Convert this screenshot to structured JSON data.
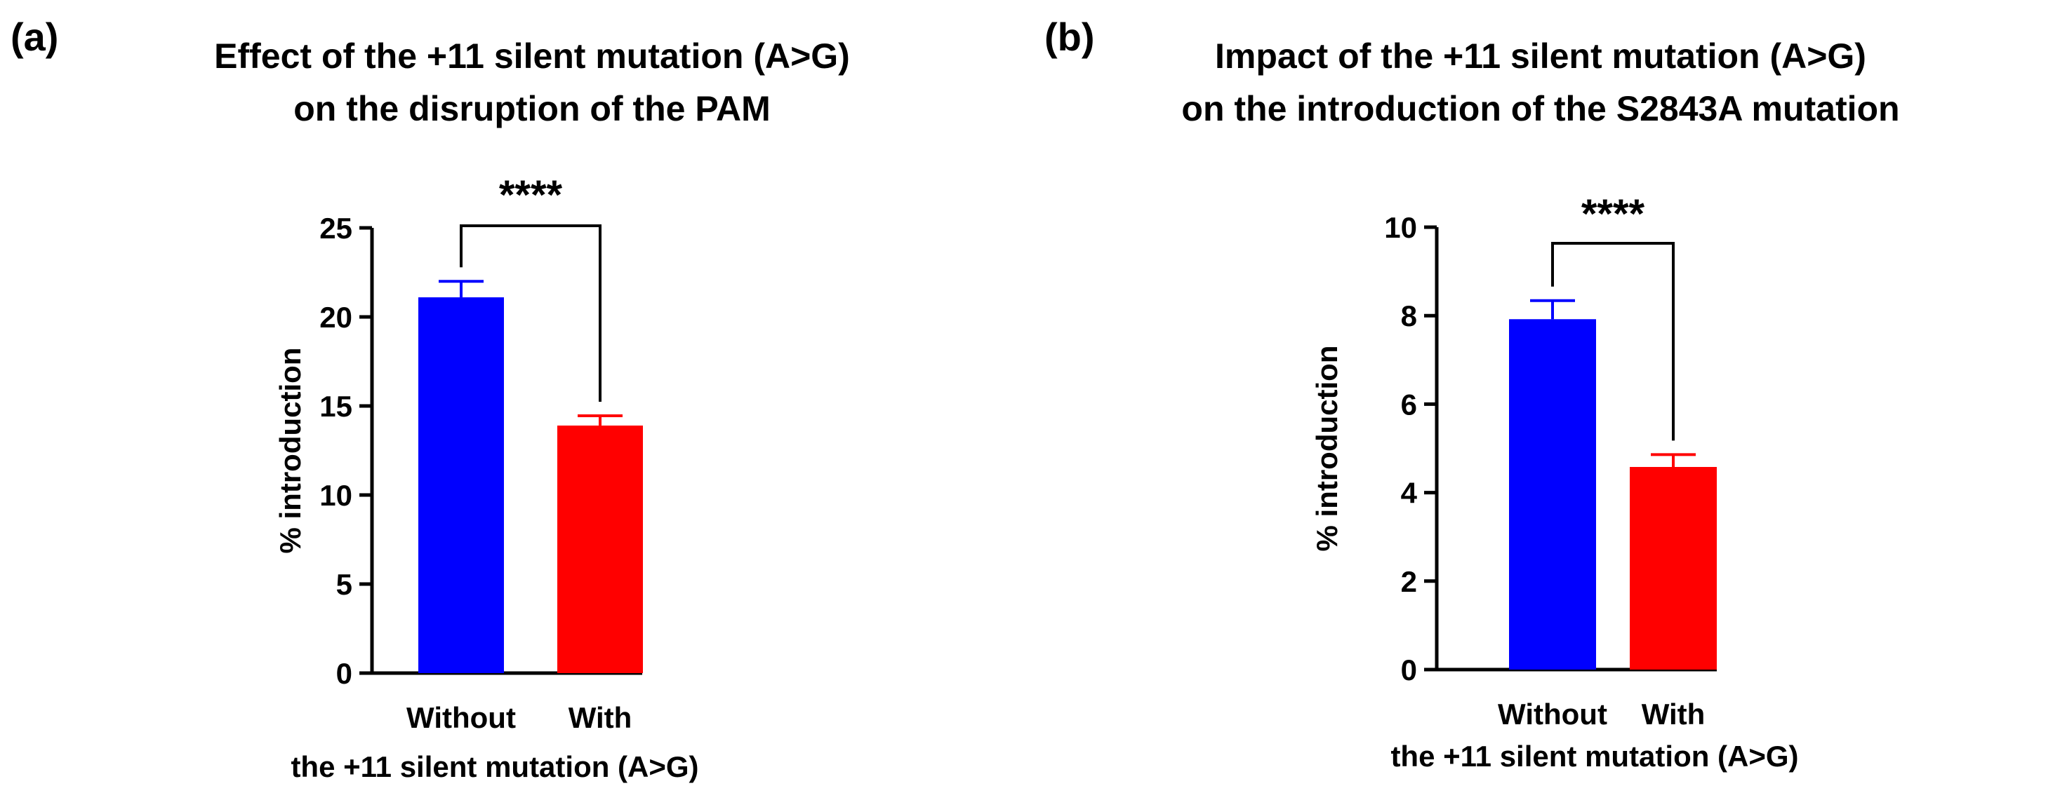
{
  "figure": {
    "panels": [
      {
        "letter": "(a)",
        "title_lines": [
          "Effect of the +11 silent mutation (A>G)",
          "on the disruption of the PAM"
        ]
      },
      {
        "letter": "(b)",
        "title_lines": [
          "Impact of the +11 silent mutation (A>G)",
          "on the introduction of the S2843A mutation"
        ]
      }
    ]
  },
  "chart_data": [
    {
      "type": "bar",
      "title": "Effect of the +11 silent mutation (A>G) on the disruption of the PAM",
      "categories": [
        "Without",
        "With"
      ],
      "values": [
        21.1,
        13.9
      ],
      "errors": [
        0.9,
        0.55
      ],
      "colors": [
        "#0000ff",
        "#ff0000"
      ],
      "xlabel": "the +11 silent mutation (A>G)",
      "ylabel": "% introduction",
      "ylim": [
        0,
        25
      ],
      "yticks": [
        0,
        5,
        10,
        15,
        20,
        25
      ],
      "significance": "****",
      "grid": false
    },
    {
      "type": "bar",
      "title": "Impact of the +11 silent mutation (A>G) on the introduction of the S2843A mutation",
      "categories": [
        "Without",
        "With"
      ],
      "values": [
        7.92,
        4.58
      ],
      "errors": [
        0.42,
        0.28
      ],
      "colors": [
        "#0000ff",
        "#ff0000"
      ],
      "xlabel": "the +11 silent mutation (A>G)",
      "ylabel": "% introduction",
      "ylim": [
        0,
        10
      ],
      "yticks": [
        0,
        2,
        4,
        6,
        8,
        10
      ],
      "significance": "****",
      "grid": false
    }
  ]
}
